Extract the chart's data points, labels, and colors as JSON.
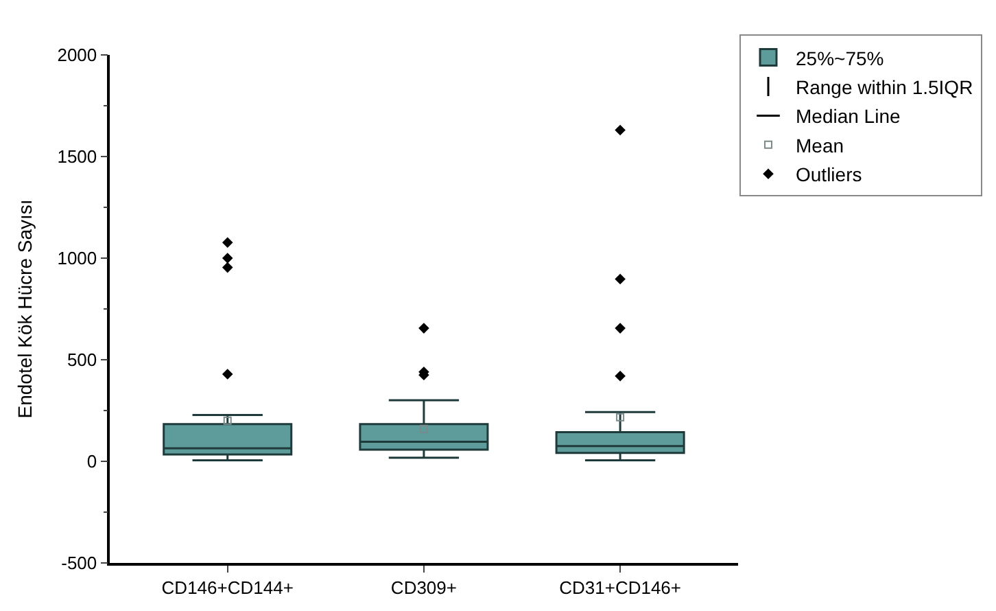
{
  "chart_data": {
    "type": "box",
    "ylabel": "Endotel Kök Hücre Sayısı",
    "categories": [
      "CD146+CD144+",
      "CD309+",
      "CD31+CD146+"
    ],
    "series": [
      {
        "name": "25%~75%",
        "color": "#5e9b9b",
        "boxes": [
          {
            "low": 5,
            "q1": 34,
            "median": 64,
            "q3": 183,
            "high": 228,
            "mean": 200,
            "outliers": [
              1077,
              1000,
              954,
              429
            ]
          },
          {
            "low": 18,
            "q1": 57,
            "median": 96,
            "q3": 183,
            "high": 301,
            "mean": 160,
            "outliers": [
              655,
              440,
              425
            ]
          },
          {
            "low": 5,
            "q1": 41,
            "median": 75,
            "q3": 144,
            "high": 242,
            "mean": 217,
            "outliers": [
              1630,
              897,
              655,
              420
            ]
          }
        ]
      }
    ],
    "annotations": [
      "Range within 1.5IQR",
      "Median Line",
      "Mean",
      "Outliers"
    ],
    "ylim": [
      -500,
      2000
    ],
    "yticks": [
      -500,
      0,
      500,
      1000,
      1500,
      2000
    ],
    "legend": "top right"
  }
}
